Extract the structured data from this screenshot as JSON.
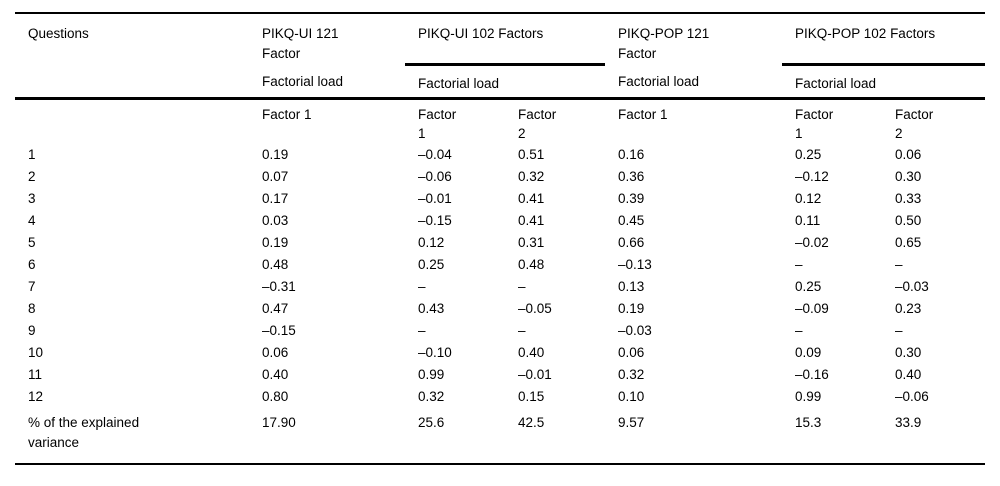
{
  "page": {
    "background_color": "#ffffff",
    "rule_color": "#000000",
    "text_color": "#000000"
  },
  "table": {
    "questions_header": "Questions",
    "groups": [
      {
        "title": "PIKQ-UI 121\nFactor",
        "load_label": "Factorial load",
        "factor_cols": [
          "Factor 1"
        ]
      },
      {
        "title": "PIKQ-UI 102 Factors",
        "load_label": "Factorial load",
        "factor_cols": [
          "Factor\n1",
          "Factor\n2"
        ]
      },
      {
        "title": "PIKQ-POP 121\nFactor",
        "load_label": "Factorial load",
        "factor_cols": [
          "Factor 1"
        ]
      },
      {
        "title": "PIKQ-POP 102 Factors",
        "load_label": "Factorial load",
        "factor_cols": [
          "Factor\n1",
          "Factor\n2"
        ]
      }
    ],
    "rows": [
      {
        "label": "1",
        "values": [
          "0.19",
          "–0.04",
          "0.51",
          "0.16",
          "0.25",
          "0.06"
        ]
      },
      {
        "label": "2",
        "values": [
          "0.07",
          "–0.06",
          "0.32",
          "0.36",
          "–0.12",
          "0.30"
        ]
      },
      {
        "label": "3",
        "values": [
          "0.17",
          "–0.01",
          "0.41",
          "0.39",
          "0.12",
          "0.33"
        ]
      },
      {
        "label": "4",
        "values": [
          "0.03",
          "–0.15",
          "0.41",
          "0.45",
          "0.11",
          "0.50"
        ]
      },
      {
        "label": "5",
        "values": [
          "0.19",
          "0.12",
          "0.31",
          "0.66",
          "–0.02",
          "0.65"
        ]
      },
      {
        "label": "6",
        "values": [
          "0.48",
          "0.25",
          "0.48",
          "–0.13",
          "–",
          "–"
        ]
      },
      {
        "label": "7",
        "values": [
          "–0.31",
          "–",
          "–",
          "0.13",
          "0.25",
          "–0.03"
        ]
      },
      {
        "label": "8",
        "values": [
          "0.47",
          "0.43",
          "–0.05",
          "0.19",
          "–0.09",
          "0.23"
        ]
      },
      {
        "label": "9",
        "values": [
          "–0.15",
          "–",
          "–",
          "–0.03",
          "–",
          "–"
        ]
      },
      {
        "label": "10",
        "values": [
          "0.06",
          "–0.10",
          "0.40",
          "0.06",
          "0.09",
          "0.30"
        ]
      },
      {
        "label": "11",
        "values": [
          "0.40",
          "0.99",
          "–0.01",
          "0.32",
          "–0.16",
          "0.40"
        ]
      },
      {
        "label": "12",
        "values": [
          "0.80",
          "0.32",
          "0.15",
          "0.10",
          "0.99",
          "–0.06"
        ]
      },
      {
        "label": "% of the explained\nvariance",
        "values": [
          "17.90",
          "25.6",
          "42.5",
          "9.57",
          "15.3",
          "33.9"
        ]
      }
    ]
  }
}
